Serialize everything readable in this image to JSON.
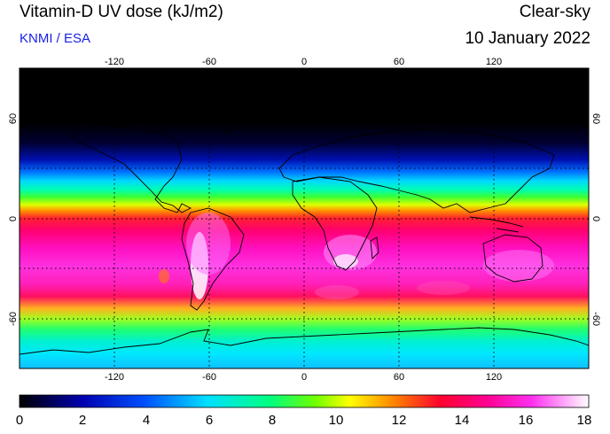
{
  "header": {
    "title": "Vitamin-D UV dose (kJ/m2)",
    "credit": "KNMI / ESA",
    "mode": "Clear-sky",
    "date": "10 January 2022"
  },
  "map": {
    "projection": "equirectangular",
    "lon_range": [
      -180,
      180
    ],
    "lat_range": [
      -90,
      90
    ],
    "gridlines": "dotted",
    "lon_ticks": [
      "-120",
      "-60",
      "0",
      "60",
      "120"
    ],
    "lat_ticks": [
      "60",
      "0",
      "-60"
    ]
  },
  "colorbar": {
    "min": 0,
    "max": 18,
    "ticks": [
      "0",
      "2",
      "4",
      "6",
      "8",
      "10",
      "12",
      "14",
      "16",
      "18"
    ],
    "colors": [
      "#000000",
      "#0000cc",
      "#0060ff",
      "#00e0ff",
      "#00ff80",
      "#40ff00",
      "#ffff00",
      "#ff8000",
      "#ff0040",
      "#ff00a0",
      "#ff40ff",
      "#ffffff"
    ]
  }
}
